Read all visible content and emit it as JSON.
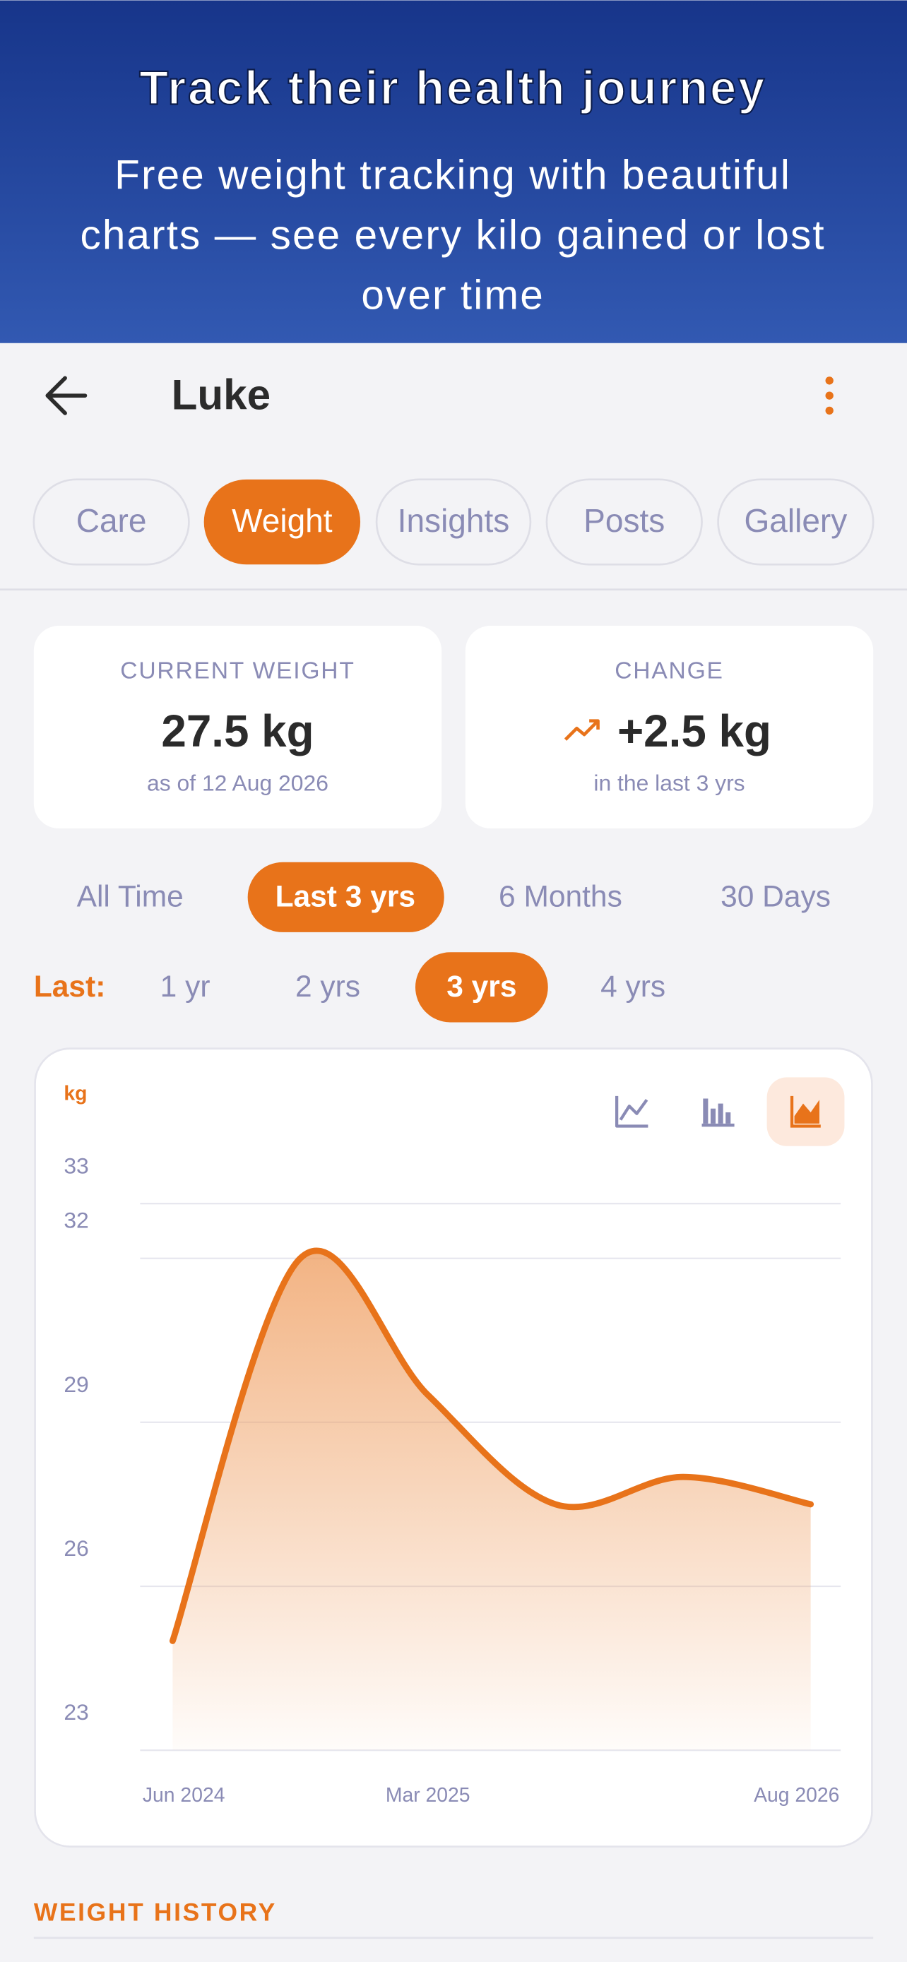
{
  "header": {
    "title": "Track their health journey",
    "subtitle_lines": [
      "Free weight tracking with beautiful",
      "charts — see every kilo gained or lost",
      "over time"
    ]
  },
  "app_bar": {
    "name": "Luke"
  },
  "tabs": {
    "items": [
      "Care",
      "Weight",
      "Insights",
      "Posts",
      "Gallery"
    ],
    "selected": 1
  },
  "stats": [
    {
      "label": "CURRENT WEIGHT",
      "value": "27.5 kg",
      "note": "as of 12 Aug 2026"
    },
    {
      "label": "CHANGE",
      "value": "+2.5 kg",
      "note": "in the last 3 yrs"
    }
  ],
  "ranges": {
    "items": [
      "All Time",
      "Last 3 yrs",
      "6 Months",
      "30 Days"
    ],
    "selected": 1
  },
  "last": {
    "label": "Last:",
    "items": [
      "1 yr",
      "2 yrs",
      "3 yrs",
      "4 yrs"
    ],
    "selected": 2
  },
  "chart_data": {
    "type": "area",
    "unit_label": "kg",
    "categories": [
      "Jun 2024",
      null,
      "Mar 2025",
      null,
      null,
      "Aug 2026"
    ],
    "values": [
      25,
      32,
      29.5,
      27.5,
      28,
      27.5
    ],
    "color": "#e8731a",
    "ylim": [
      23,
      33
    ],
    "yticks": [
      23,
      26,
      29,
      32,
      33
    ],
    "grid": true
  },
  "section_title": "WEIGHT HISTORY"
}
